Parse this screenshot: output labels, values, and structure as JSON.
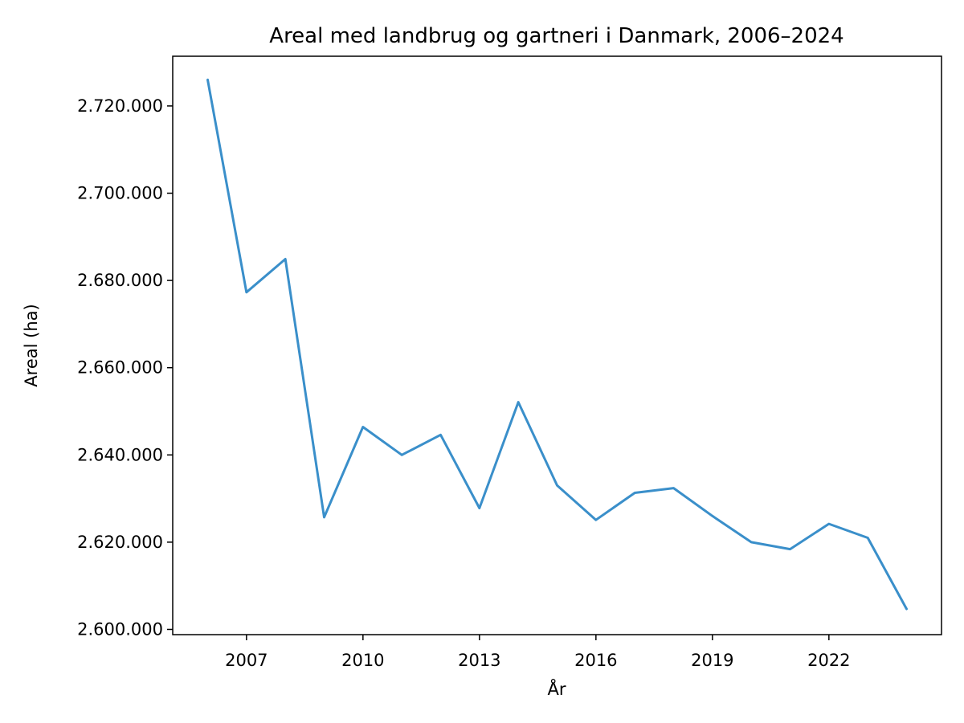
{
  "chart_data": {
    "type": "line",
    "title": "Areal med landbrug og gartneri i Danmark, 2006–2024",
    "xlabel": "År",
    "ylabel": "Areal (ha)",
    "xlim": [
      2005.1,
      2024.9
    ],
    "ylim": [
      2598800,
      2731400
    ],
    "x_ticks": [
      2007,
      2010,
      2013,
      2016,
      2019,
      2022
    ],
    "y_ticks": [
      2600000,
      2620000,
      2640000,
      2660000,
      2680000,
      2700000,
      2720000
    ],
    "y_tick_labels": [
      "2.600.000",
      "2.620.000",
      "2.640.000",
      "2.660.000",
      "2.680.000",
      "2.700.000",
      "2.720.000"
    ],
    "grid": false,
    "series": [
      {
        "color": "#3a8fca",
        "x": [
          2006,
          2007,
          2008,
          2009,
          2010,
          2011,
          2012,
          2013,
          2014,
          2015,
          2016,
          2017,
          2018,
          2019,
          2020,
          2021,
          2022,
          2023,
          2024
        ],
        "y": [
          2726000,
          2677300,
          2684900,
          2625700,
          2646400,
          2640000,
          2644600,
          2627800,
          2652100,
          2633000,
          2625100,
          2631300,
          2632400,
          2626000,
          2620000,
          2618400,
          2624200,
          2621000,
          2604700
        ]
      }
    ]
  }
}
